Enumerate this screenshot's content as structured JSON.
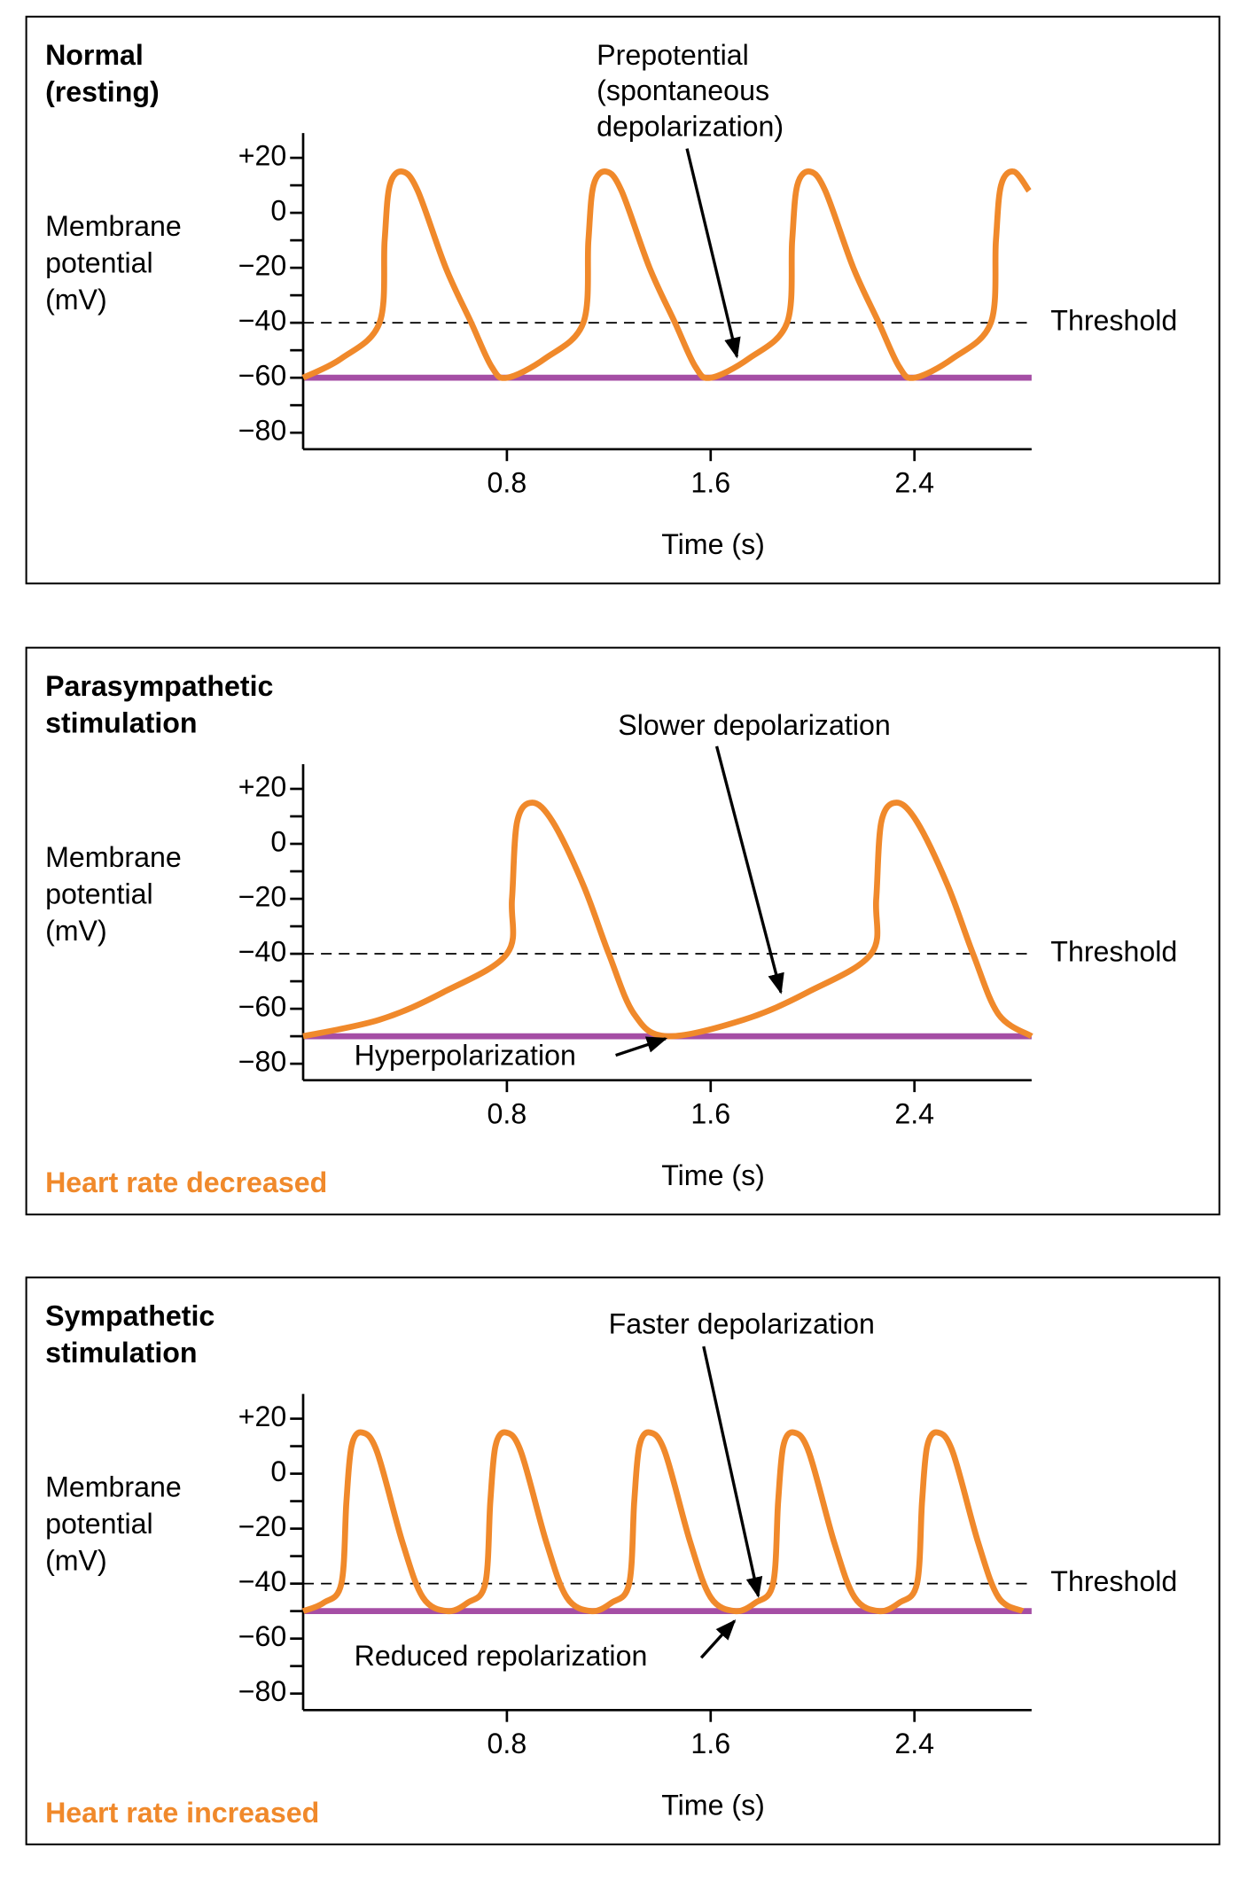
{
  "chart_data": [
    {
      "type": "line",
      "title": [
        "Normal",
        "(resting)"
      ],
      "ylabel": [
        "Membrane",
        "potential",
        "(mV)"
      ],
      "xlabel": "Time (s)",
      "xlim": [
        0,
        2.86
      ],
      "ylim": [
        -86,
        29
      ],
      "xticks": [
        0.8,
        1.6,
        2.4
      ],
      "yticks": [
        {
          "value": 20,
          "label": "+20"
        },
        0,
        {
          "value": -20,
          "label": "−20"
        },
        {
          "value": -40,
          "label": "−40"
        },
        {
          "value": -60,
          "label": "−60"
        },
        {
          "value": -80,
          "label": "−80"
        }
      ],
      "yminor": [
        10,
        -10,
        -30,
        -50,
        -70
      ],
      "threshold": {
        "value": -40,
        "label": "Threshold"
      },
      "baseline": -60,
      "baseline_color": "#a54ea5",
      "series": [
        {
          "color": "#f0892b",
          "x": [
            0,
            0.15,
            0.3,
            0.32,
            0.34,
            0.39,
            0.45,
            0.56,
            0.66,
            0.74,
            0.8,
            0.95,
            1.1,
            1.12,
            1.14,
            1.19,
            1.25,
            1.36,
            1.46,
            1.54,
            1.6,
            1.75,
            1.9,
            1.92,
            1.94,
            1.99,
            2.05,
            2.16,
            2.26,
            2.34,
            2.4,
            2.55,
            2.7,
            2.72,
            2.74,
            2.79,
            2.85
          ],
          "values": [
            -60,
            -53,
            -40,
            -10,
            10,
            15,
            8,
            -20,
            -40,
            -56,
            -60,
            -53,
            -40,
            -10,
            10,
            15,
            8,
            -20,
            -40,
            -56,
            -60,
            -53,
            -40,
            -10,
            10,
            15,
            8,
            -20,
            -40,
            -56,
            -60,
            -53,
            -40,
            -10,
            10,
            15,
            8
          ]
        }
      ],
      "annotations": [
        {
          "lines": [
            "Prepotential",
            "(spontaneous",
            "depolarization)"
          ]
        }
      ]
    },
    {
      "type": "line",
      "title": [
        "Parasympathetic",
        "stimulation"
      ],
      "ylabel": [
        "Membrane",
        "potential",
        "(mV)"
      ],
      "xlabel": "Time (s)",
      "xlim": [
        0,
        2.86
      ],
      "ylim": [
        -86,
        29
      ],
      "xticks": [
        0.8,
        1.6,
        2.4
      ],
      "yticks": [
        {
          "value": 20,
          "label": "+20"
        },
        0,
        {
          "value": -20,
          "label": "−20"
        },
        {
          "value": -40,
          "label": "−40"
        },
        {
          "value": -60,
          "label": "−60"
        },
        {
          "value": -80,
          "label": "−80"
        }
      ],
      "yminor": [
        10,
        -10,
        -30,
        -50,
        -70
      ],
      "threshold": {
        "value": -40,
        "label": "Threshold"
      },
      "baseline": -70,
      "baseline_color": "#a54ea5",
      "series": [
        {
          "color": "#f0892b",
          "x": [
            0,
            0.3,
            0.55,
            0.8,
            0.82,
            0.84,
            0.9,
            0.98,
            1.1,
            1.2,
            1.3,
            1.43,
            1.73,
            1.98,
            2.23,
            2.25,
            2.27,
            2.33,
            2.41,
            2.53,
            2.63,
            2.73,
            2.86
          ],
          "values": [
            -70,
            -64,
            -54,
            -40,
            -20,
            8,
            15,
            8,
            -15,
            -40,
            -62,
            -70,
            -64,
            -54,
            -40,
            -20,
            8,
            15,
            8,
            -15,
            -40,
            -62,
            -70
          ]
        }
      ],
      "annotations": [
        {
          "lines": [
            "Slower depolarization"
          ]
        },
        {
          "lines": [
            "Hyperpolarization"
          ]
        }
      ],
      "note": "Heart rate decreased",
      "note_color": "#f0892b"
    },
    {
      "type": "line",
      "title": [
        "Sympathetic",
        "stimulation"
      ],
      "ylabel": [
        "Membrane",
        "potential",
        "(mV)"
      ],
      "xlabel": "Time (s)",
      "xlim": [
        0,
        2.86
      ],
      "ylim": [
        -86,
        29
      ],
      "xticks": [
        0.8,
        1.6,
        2.4
      ],
      "yticks": [
        {
          "value": 20,
          "label": "+20"
        },
        0,
        {
          "value": -20,
          "label": "−20"
        },
        {
          "value": -40,
          "label": "−40"
        },
        {
          "value": -60,
          "label": "−60"
        },
        {
          "value": -80,
          "label": "−80"
        }
      ],
      "yminor": [
        10,
        -10,
        -30,
        -50,
        -70
      ],
      "threshold": {
        "value": -40,
        "label": "Threshold"
      },
      "baseline": -50,
      "baseline_color": "#a54ea5",
      "series": [
        {
          "color": "#f0892b",
          "x": [
            0,
            0.08,
            0.15,
            0.17,
            0.19,
            0.23,
            0.29,
            0.39,
            0.47,
            0.565,
            0.645,
            0.715,
            0.735,
            0.755,
            0.795,
            0.855,
            0.955,
            1.035,
            1.13,
            1.21,
            1.28,
            1.3,
            1.32,
            1.36,
            1.42,
            1.52,
            1.6,
            1.695,
            1.775,
            1.845,
            1.865,
            1.885,
            1.925,
            1.985,
            2.085,
            2.165,
            2.26,
            2.34,
            2.41,
            2.43,
            2.45,
            2.49,
            2.55,
            2.65,
            2.73,
            2.825
          ],
          "values": [
            -50,
            -47,
            -40,
            -10,
            10,
            15,
            8,
            -25,
            -45,
            -50,
            -47,
            -40,
            -10,
            10,
            15,
            8,
            -25,
            -45,
            -50,
            -47,
            -40,
            -10,
            10,
            15,
            8,
            -25,
            -45,
            -50,
            -47,
            -40,
            -10,
            10,
            15,
            8,
            -25,
            -45,
            -50,
            -47,
            -40,
            -10,
            10,
            15,
            8,
            -25,
            -45,
            -50
          ]
        }
      ],
      "annotations": [
        {
          "lines": [
            "Faster depolarization"
          ]
        },
        {
          "lines": [
            "Reduced repolarization"
          ]
        }
      ],
      "note": "Heart rate increased",
      "note_color": "#f0892b"
    }
  ]
}
